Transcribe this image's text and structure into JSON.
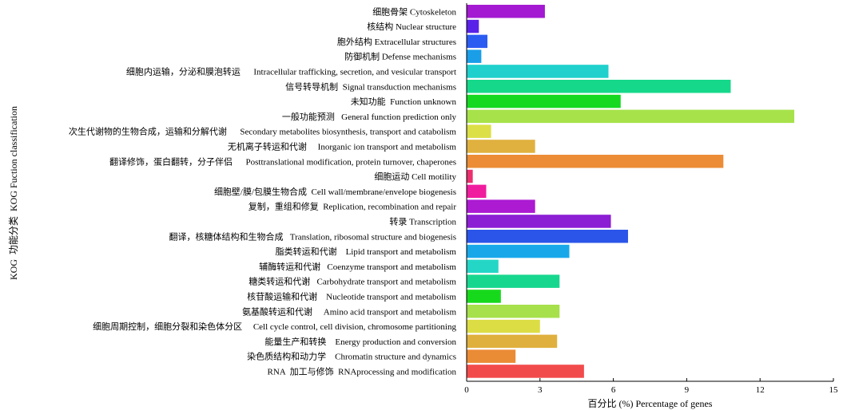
{
  "chart_data": {
    "type": "bar",
    "orientation": "horizontal",
    "xlabel": "百分比 (%) Percentage  of genes",
    "ylabel": "KOG  功能分类  KOG Fuction classification",
    "xlim": [
      0,
      15
    ],
    "xticks": [
      "0",
      "3",
      "6",
      "9",
      "12",
      "15"
    ],
    "grid": false,
    "categories": [
      "细胞骨架 Cytoskeleton",
      "核结构 Nuclear structure",
      "胞外结构 Extracellular structures",
      "防御机制 Defense mechanisms",
      "细胞内运输，分泌和膜泡转运      Intracellular trafficking, secretion, and vesicular transport",
      "信号转导机制  Signal transduction mechanisms",
      "未知功能  Function unknown",
      "一般功能预测   General function prediction only",
      "次生代谢物的生物合成，运输和分解代谢      Secondary metabolites biosynthesis, transport and catabolism",
      "无机离子转运和代谢     Inorganic ion transport and metabolism",
      "翻译修饰，蛋白翻转，分子伴侣      Posttranslational modification, protein turnover, chaperones",
      "细胞运动 Cell motility",
      "细胞壁/膜/包膜生物合成  Cell wall/membrane/envelope biogenesis",
      "复制，重组和修复  Replication, recombination and repair",
      "转录 Transcription",
      "翻译，核糖体结构和生物合成   Translation, ribosomal structure and biogenesis",
      "脂类转运和代谢    Lipid transport and metabolism",
      "辅酶转运和代谢   Coenzyme transport and metabolism",
      "糖类转运和代谢   Carbohydrate transport and metabolism",
      "核苷酸运输和代谢    Nucleotide transport and metabolism",
      "氨基酸转运和代谢     Amino acid transport and metabolism",
      "细胞周期控制，细胞分裂和染色体分区     Cell cycle control, cell division, chromosome partitioning",
      "能量生产和转换    Energy production and conversion",
      "染色质结构和动力学    Chromatin structure and dynamics",
      "RNA  加工与修饰  RNAprocessing and modification"
    ],
    "values": [
      3.2,
      0.5,
      0.85,
      0.6,
      5.8,
      10.8,
      6.3,
      13.4,
      1.0,
      2.8,
      10.5,
      0.25,
      0.8,
      2.8,
      5.9,
      6.6,
      4.2,
      1.3,
      3.8,
      1.4,
      3.8,
      3.0,
      3.7,
      2.0,
      4.8
    ],
    "colors": [
      "#a31ad2",
      "#5a22e8",
      "#2b5cf2",
      "#1a9ee8",
      "#1fd0cc",
      "#16d88a",
      "#14d920",
      "#a7e24a",
      "#dcdf46",
      "#e0b13f",
      "#ec8c36",
      "#ec2f6e",
      "#f01c9e",
      "#ac1ad2",
      "#8c1ed4",
      "#2b55e9",
      "#18a8ea",
      "#24d6c6",
      "#17d78e",
      "#17d91c",
      "#a6e04a",
      "#dcdd45",
      "#e0b03e",
      "#ea8b36",
      "#f24b4b"
    ]
  }
}
